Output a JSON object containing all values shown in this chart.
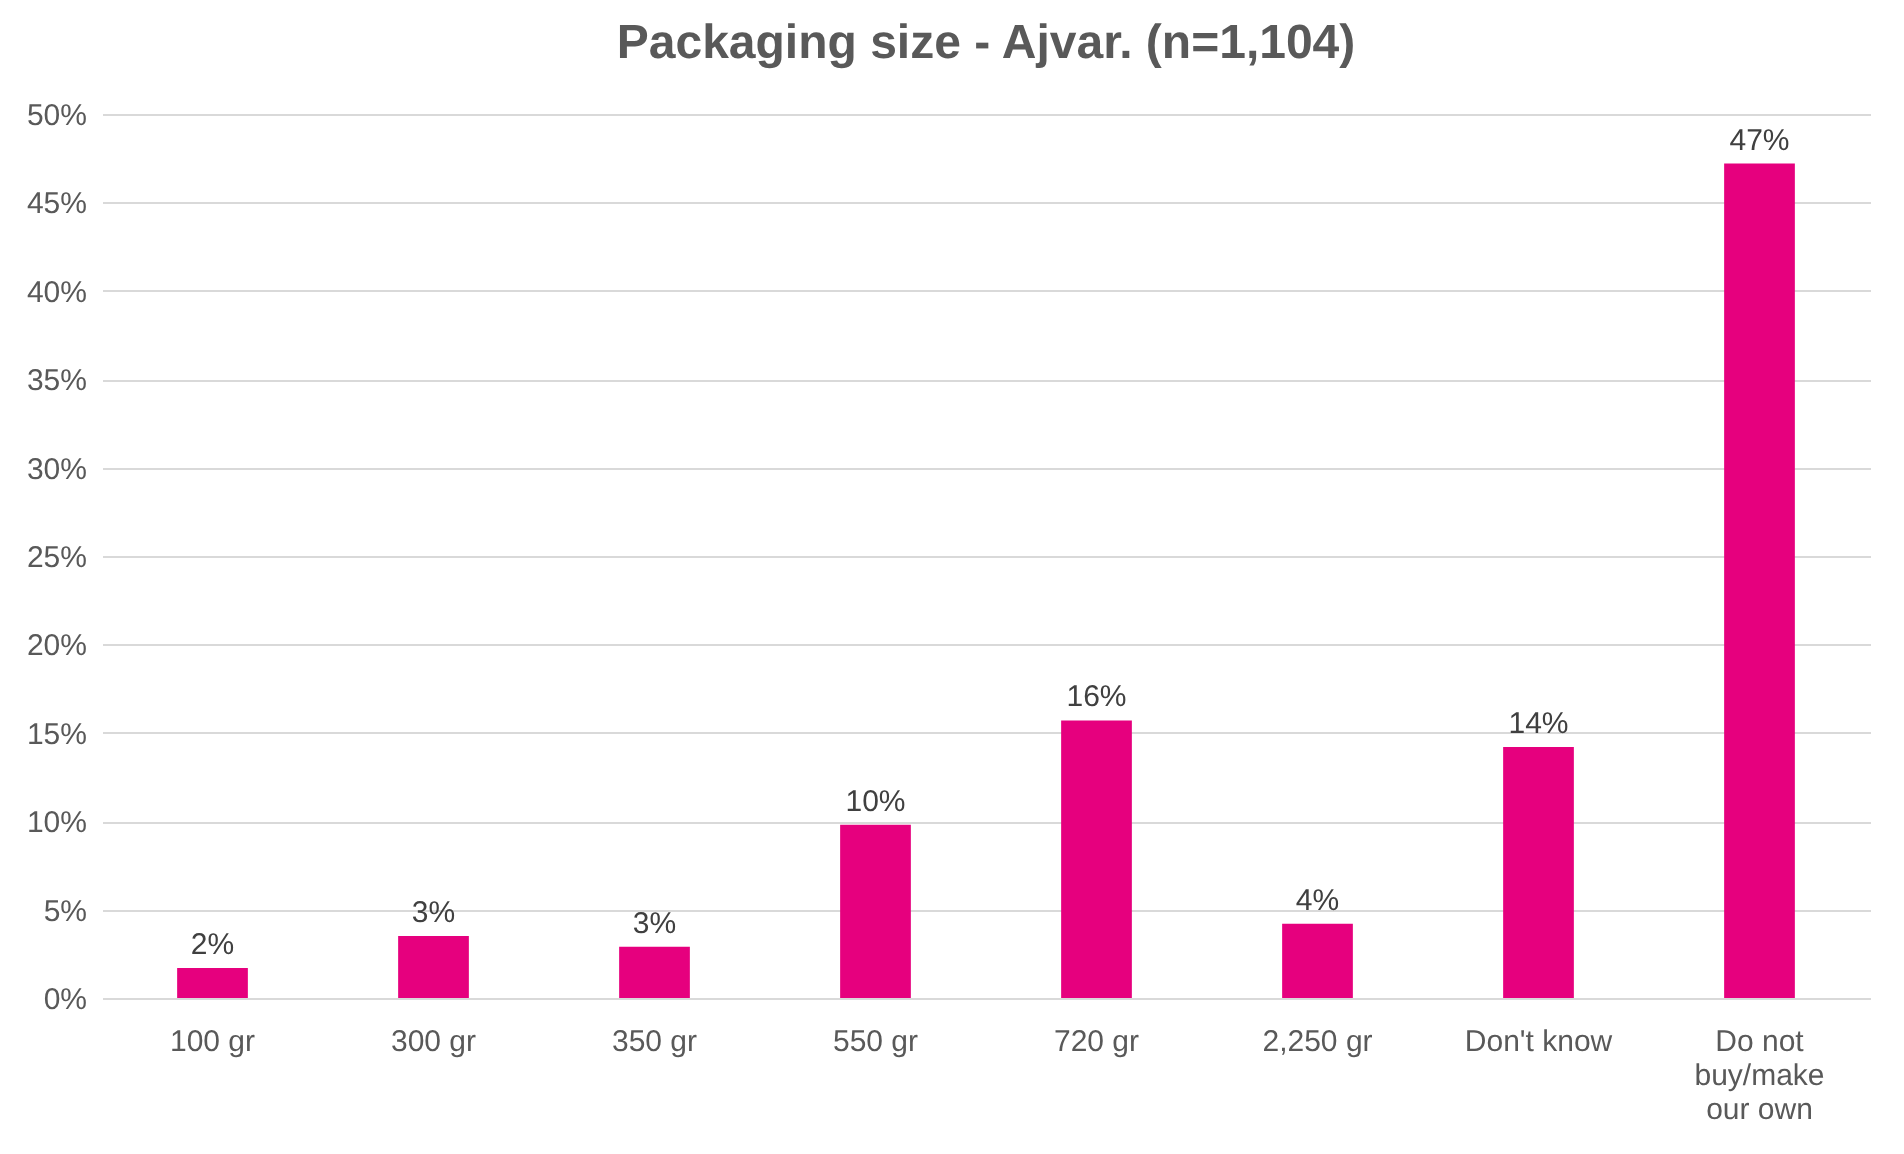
{
  "chart_data": {
    "type": "bar",
    "title": "Packaging size - Ajvar. (n=1,104)",
    "categories": [
      "100 gr",
      "300 gr",
      "350 gr",
      "550 gr",
      "720 gr",
      "2,250 gr",
      "Don't know",
      "Do not buy/make our own"
    ],
    "values": [
      1.7,
      3.5,
      2.9,
      9.8,
      15.7,
      4.2,
      14.2,
      47.2
    ],
    "value_labels": [
      "2%",
      "3%",
      "3%",
      "10%",
      "16%",
      "4%",
      "14%",
      "47%"
    ],
    "color": "#e6007e",
    "ylim": [
      0,
      50
    ],
    "yticks": [
      {
        "value": 0,
        "label": "0%"
      },
      {
        "value": 5,
        "label": "5%"
      },
      {
        "value": 10,
        "label": "10%"
      },
      {
        "value": 15,
        "label": "15%"
      },
      {
        "value": 20,
        "label": "20%"
      },
      {
        "value": 25,
        "label": "25%"
      },
      {
        "value": 30,
        "label": "30%"
      },
      {
        "value": 35,
        "label": "35%"
      },
      {
        "value": 40,
        "label": "40%"
      },
      {
        "value": 45,
        "label": "45%"
      },
      {
        "value": 50,
        "label": "50%"
      }
    ],
    "grid": "y"
  }
}
